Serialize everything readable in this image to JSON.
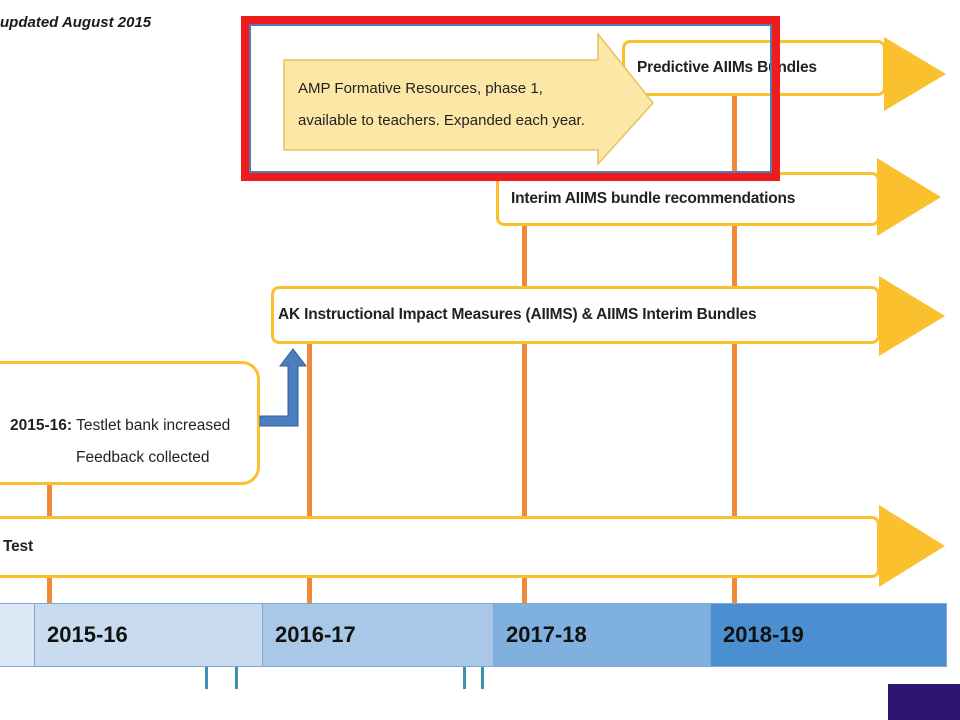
{
  "header": {
    "subtitle": "updated August 2015"
  },
  "bars": {
    "predictive": "Predictive AIIMs Bundles",
    "interim_recommendations": "Interim AIIMS bundle recommendations",
    "aiims": "AK Instructional Impact Measures (AIIMS) & AIIMS Interim Bundles",
    "test": "Test"
  },
  "formative_callout": {
    "line1": "AMP Formative Resources, phase 1,",
    "line2": "available to teachers. Expanded each year."
  },
  "testlet_box": {
    "year_label": "2015-16:",
    "line1": "Testlet bank increased",
    "line2": "Feedback collected"
  },
  "timeline": {
    "years": [
      "2015-16",
      "2016-17",
      "2017-18",
      "2018-19"
    ],
    "colors": [
      "#c9dcef",
      "#a9c8e8",
      "#7fb0de",
      "#4b8fd0"
    ]
  },
  "colors": {
    "bar_border": "#fbc02d",
    "callout_fill": "#fde7a6",
    "vertical_lines": "#ee8a3a",
    "highlight": "#ee1c1c",
    "up_arrow": "#4a7ebf",
    "corner_block": "#2c1470"
  }
}
